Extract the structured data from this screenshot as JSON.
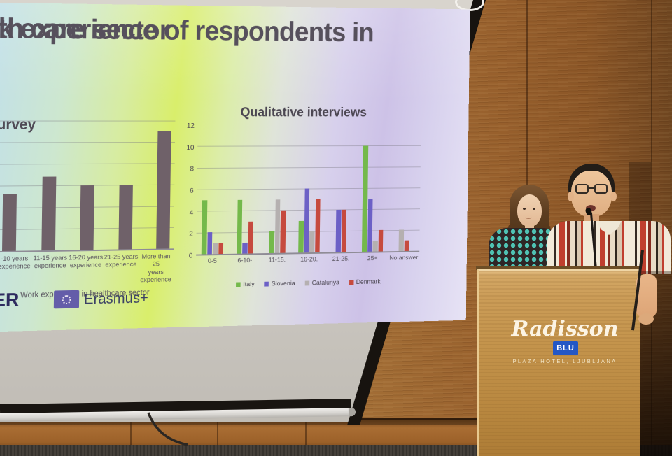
{
  "slide": {
    "title_line1": "k experience of respondents in",
    "title_line2": "th care sector",
    "footer_partner_fragment": "ER",
    "erasmus_label": "Erasmus+"
  },
  "podium": {
    "brand_script": "Radisson",
    "brand_badge": "BLU",
    "brand_subtitle": "PLAZA HOTEL, LJUBLJANA"
  },
  "colors": {
    "slide_left_tint": "#c2e0e8",
    "slide_center_tint": "#d9ee6b",
    "slide_right_tint": "#cdc2e7",
    "survey_bar": "#6f6169",
    "eu_flag_blue": "#645da9",
    "radisson_badge_blue": "#2457c5",
    "wood_wall": "#9b6630",
    "podium_wood": "#c99a55"
  },
  "chart_data": [
    {
      "type": "bar",
      "title": "urvey",
      "categories": [
        "-10 years\nexperience",
        "11-15 years\nexperience",
        "16-20 years\nexperience",
        "21-25 years\nexperience",
        "More than 25\nyears\nexperience"
      ],
      "values": [
        2.6,
        3.4,
        3.0,
        3.0,
        5.5
      ],
      "xlabel": "Work experience in healthcare sector",
      "ylabel": "",
      "ylim": [
        0,
        6.3
      ],
      "yticks_visible": false,
      "grid": true,
      "bar_color": "#6f6169"
    },
    {
      "type": "bar",
      "title": "Qualitative interviews",
      "categories": [
        "0-5",
        "6-10-",
        "11-15.",
        "16-20.",
        "21-25.",
        "25+",
        "No answer"
      ],
      "series": [
        {
          "name": "Italy",
          "color": "#74b94b",
          "values": [
            5,
            5,
            2,
            3,
            0,
            10,
            0
          ]
        },
        {
          "name": "Slovenia",
          "color": "#6c60c6",
          "values": [
            2,
            1,
            0,
            6,
            4,
            5,
            0
          ]
        },
        {
          "name": "Catalunya",
          "color": "#b5b0b0",
          "values": [
            1,
            0,
            5,
            2,
            0,
            1,
            2
          ]
        },
        {
          "name": "Denmark",
          "color": "#c64a3e",
          "values": [
            1,
            3,
            4,
            5,
            4,
            2,
            1
          ]
        }
      ],
      "xlabel": "",
      "ylabel": "",
      "ylim": [
        0,
        12
      ],
      "yticks": [
        0,
        2,
        4,
        6,
        8,
        10,
        12
      ],
      "grid": true,
      "legend_position": "bottom"
    }
  ]
}
